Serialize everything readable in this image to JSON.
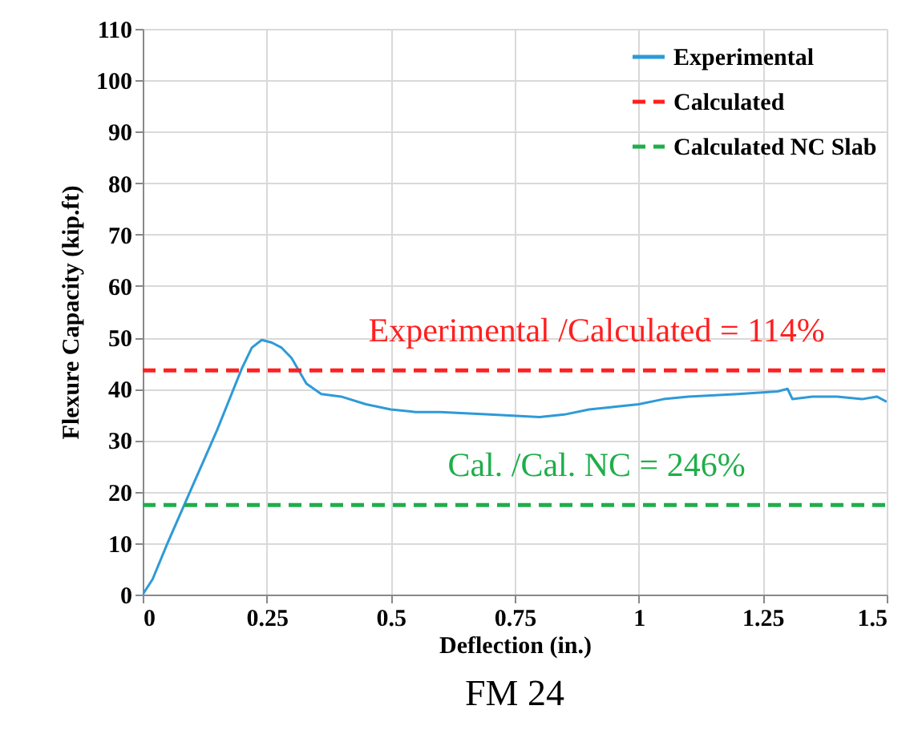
{
  "chart_data": {
    "type": "line",
    "xlabel": "Deflection (in.)",
    "ylabel": "Flexure Capacity (kip.ft)",
    "series": [
      {
        "name": "Experimental",
        "color": "#2e9ad8",
        "line_style": "solid",
        "x": [
          0,
          0.02,
          0.05,
          0.1,
          0.15,
          0.2,
          0.22,
          0.24,
          0.26,
          0.28,
          0.3,
          0.33,
          0.36,
          0.4,
          0.45,
          0.5,
          0.55,
          0.6,
          0.7,
          0.8,
          0.85,
          0.9,
          0.95,
          1.0,
          1.05,
          1.1,
          1.2,
          1.28,
          1.3,
          1.31,
          1.35,
          1.4,
          1.45,
          1.48,
          1.5
        ],
        "values": [
          0,
          3,
          10,
          21,
          32,
          44,
          48,
          49.5,
          49,
          48,
          46,
          41,
          39,
          38.5,
          37,
          36,
          35.5,
          35.5,
          35,
          34.5,
          35,
          36,
          36.5,
          37,
          38,
          38.5,
          39,
          39.5,
          40,
          38,
          38.5,
          38.5,
          38,
          38.5,
          37.5
        ]
      },
      {
        "name": "Calculated",
        "color": "#ff2020",
        "line_style": "dashed",
        "x": [
          0,
          1.5
        ],
        "values": [
          43.6,
          43.6
        ]
      },
      {
        "name": "Calculated NC Slab",
        "color": "#1fae4b",
        "line_style": "dashed",
        "x": [
          0,
          1.5
        ],
        "values": [
          17.4,
          17.4
        ]
      }
    ],
    "xlim": [
      0,
      1.5
    ],
    "xticks": [
      0,
      0.25,
      0.5,
      0.75,
      1,
      1.25,
      1.5
    ],
    "ylim": [
      0,
      110
    ],
    "yticks": [
      0,
      10,
      20,
      30,
      40,
      50,
      60,
      70,
      80,
      90,
      100,
      110
    ],
    "grid": true,
    "legend": "top right",
    "annotations": [
      "Experimental /Calculated = 114%",
      "Cal. /Cal. NC = 246%",
      "FM 24"
    ]
  }
}
